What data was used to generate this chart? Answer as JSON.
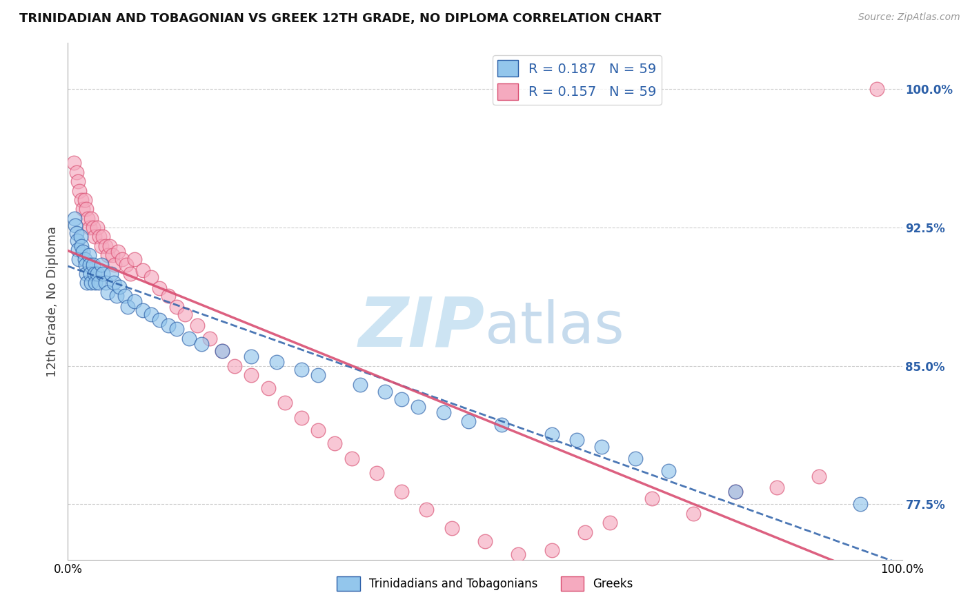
{
  "title": "TRINIDADIAN AND TOBAGONIAN VS GREEK 12TH GRADE, NO DIPLOMA CORRELATION CHART",
  "source": "Source: ZipAtlas.com",
  "ylabel": "12th Grade, No Diploma",
  "xmin": 0.0,
  "xmax": 1.0,
  "ymin": 0.745,
  "ymax": 1.025,
  "yticks": [
    0.775,
    0.85,
    0.925,
    1.0
  ],
  "ytick_labels": [
    "77.5%",
    "85.0%",
    "92.5%",
    "100.0%"
  ],
  "xtick_labels": [
    "0.0%",
    "100.0%"
  ],
  "R_blue": 0.187,
  "N_blue": 59,
  "R_pink": 0.157,
  "N_pink": 59,
  "blue_color": "#93C6EC",
  "pink_color": "#F5AABF",
  "line_blue_color": "#2B5FA8",
  "line_pink_color": "#D94F72",
  "legend_blue_label": "Trinidadians and Tobagonians",
  "legend_pink_label": "Greeks",
  "blue_x": [
    0.008,
    0.009,
    0.01,
    0.011,
    0.012,
    0.013,
    0.015,
    0.016,
    0.018,
    0.02,
    0.021,
    0.022,
    0.023,
    0.025,
    0.026,
    0.027,
    0.028,
    0.03,
    0.032,
    0.033,
    0.035,
    0.037,
    0.04,
    0.042,
    0.045,
    0.048,
    0.052,
    0.055,
    0.058,
    0.062,
    0.068,
    0.072,
    0.08,
    0.09,
    0.1,
    0.11,
    0.12,
    0.13,
    0.145,
    0.16,
    0.185,
    0.22,
    0.25,
    0.28,
    0.3,
    0.35,
    0.38,
    0.4,
    0.42,
    0.45,
    0.48,
    0.52,
    0.58,
    0.61,
    0.64,
    0.68,
    0.72,
    0.8,
    0.95
  ],
  "blue_y": [
    0.93,
    0.926,
    0.922,
    0.918,
    0.913,
    0.908,
    0.92,
    0.915,
    0.912,
    0.908,
    0.905,
    0.9,
    0.895,
    0.91,
    0.905,
    0.9,
    0.895,
    0.905,
    0.9,
    0.895,
    0.9,
    0.895,
    0.905,
    0.9,
    0.895,
    0.89,
    0.9,
    0.895,
    0.888,
    0.893,
    0.888,
    0.882,
    0.885,
    0.88,
    0.878,
    0.875,
    0.872,
    0.87,
    0.865,
    0.862,
    0.858,
    0.855,
    0.852,
    0.848,
    0.845,
    0.84,
    0.836,
    0.832,
    0.828,
    0.825,
    0.82,
    0.818,
    0.813,
    0.81,
    0.806,
    0.8,
    0.793,
    0.782,
    0.775
  ],
  "pink_x": [
    0.007,
    0.01,
    0.012,
    0.014,
    0.016,
    0.018,
    0.02,
    0.022,
    0.024,
    0.026,
    0.028,
    0.03,
    0.032,
    0.035,
    0.038,
    0.04,
    0.042,
    0.045,
    0.048,
    0.05,
    0.053,
    0.056,
    0.06,
    0.065,
    0.07,
    0.075,
    0.08,
    0.09,
    0.1,
    0.11,
    0.12,
    0.13,
    0.14,
    0.155,
    0.17,
    0.185,
    0.2,
    0.22,
    0.24,
    0.26,
    0.28,
    0.3,
    0.32,
    0.34,
    0.37,
    0.4,
    0.43,
    0.46,
    0.5,
    0.54,
    0.58,
    0.62,
    0.65,
    0.7,
    0.75,
    0.8,
    0.85,
    0.9,
    0.97
  ],
  "pink_y": [
    0.96,
    0.955,
    0.95,
    0.945,
    0.94,
    0.935,
    0.94,
    0.935,
    0.93,
    0.925,
    0.93,
    0.925,
    0.92,
    0.925,
    0.92,
    0.915,
    0.92,
    0.915,
    0.91,
    0.915,
    0.91,
    0.905,
    0.912,
    0.908,
    0.905,
    0.9,
    0.908,
    0.902,
    0.898,
    0.892,
    0.888,
    0.882,
    0.878,
    0.872,
    0.865,
    0.858,
    0.85,
    0.845,
    0.838,
    0.83,
    0.822,
    0.815,
    0.808,
    0.8,
    0.792,
    0.782,
    0.772,
    0.762,
    0.755,
    0.748,
    0.75,
    0.76,
    0.765,
    0.778,
    0.77,
    0.782,
    0.784,
    0.79,
    1.0
  ]
}
